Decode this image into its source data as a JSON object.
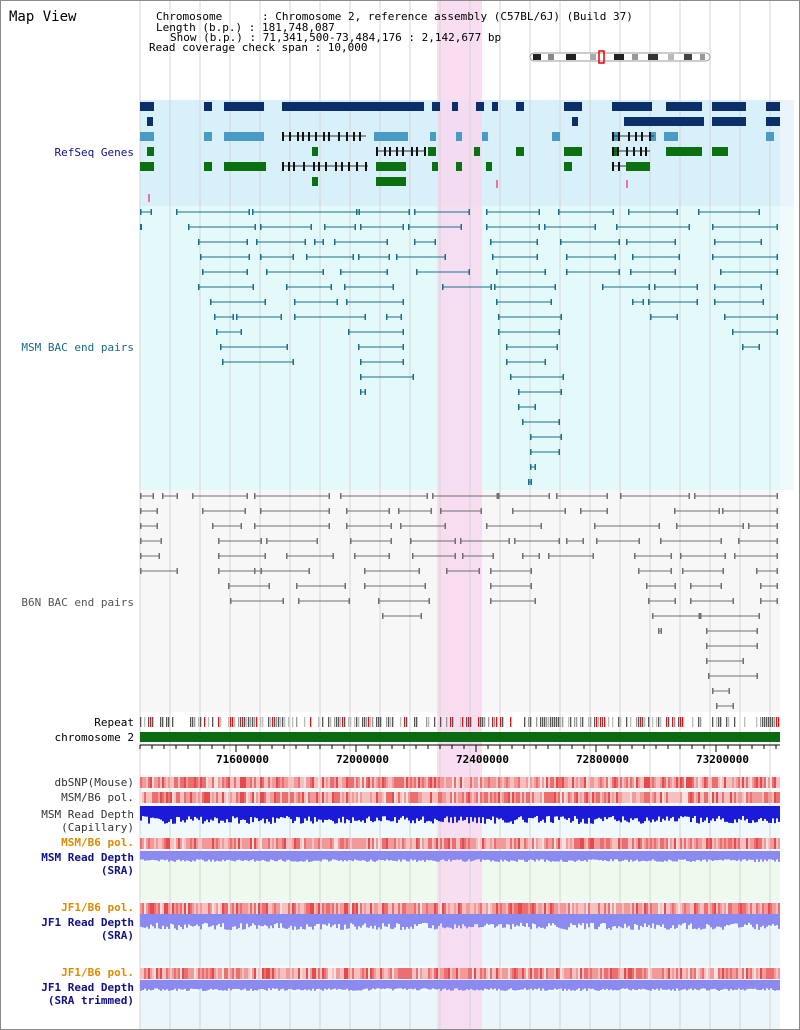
{
  "page": {
    "title": "Map View"
  },
  "header": {
    "chromosome_label": "Chromosome      : Chromosome 2, reference assembly (C57BL/6J) (Build 37)",
    "length_label": "Length (b.p.) : 181,748,087",
    "show_label": "Show (b.p.) : 71,341,500-73,484,176 : 2,142,677 bp",
    "coverage_label": "Read coverage check span : 10,000"
  },
  "tracks": {
    "refseq": "RefSeq Genes",
    "msm_bac": "MSM BAC end pairs",
    "b6n_bac": "B6N BAC end pairs",
    "repeat": "Repeat",
    "chromosome": "chromosome 2",
    "dbsnp": "dbSNP(Mouse)",
    "msm_b6_pol": "MSM/B6 pol.",
    "msm_depth_cap_1": "MSM Read Depth",
    "msm_depth_cap_2": "(Capillary)",
    "msm_b6_pol_sra": "MSM/B6 pol.",
    "msm_depth_sra_1": "MSM Read Depth",
    "msm_depth_sra_2": "(SRA)",
    "jf1_b6_pol": "JF1/B6 pol.",
    "jf1_depth_1": "JF1 Read Depth",
    "jf1_depth_2": "(SRA)",
    "jf1_b6_pol_trim": "JF1/B6 pol.",
    "jf1_trim_1": "JF1 Read Depth",
    "jf1_trim_2": "(SRA trimmed)"
  },
  "ruler": {
    "ticks": [
      "71600000",
      "72000000",
      "72400000",
      "72800000",
      "73200000"
    ]
  },
  "colors": {
    "refseq_bg": "#d8f0fa",
    "msm_bg": "#e4fafa",
    "b6n_bg": "#f7f7f7",
    "highlight": "#f8d8f0",
    "gene_dark": "#0a2f6a",
    "gene_mid": "#4a9ac6",
    "gene_green": "#0c7010",
    "bac_msm": "#1a6e8c",
    "bac_b6n": "#707070",
    "chrom_bar": "#0b6b10",
    "snp": "#e84848",
    "depth_dark": "#1a1ad8",
    "depth_light": "#8a8af0",
    "label_navy": "#10108a",
    "label_teal": "#1a6a8a",
    "label_orange": "#e08a00"
  }
}
